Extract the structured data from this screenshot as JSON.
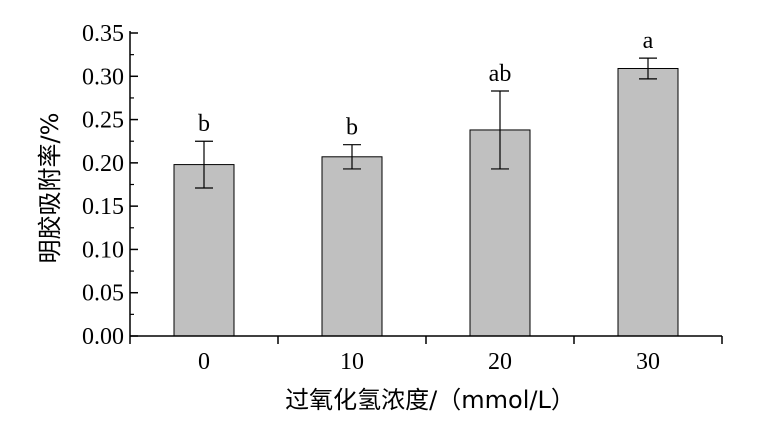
{
  "chart_data": {
    "type": "bar",
    "categories": [
      "0",
      "10",
      "20",
      "30"
    ],
    "values": [
      0.198,
      0.207,
      0.238,
      0.309
    ],
    "error": [
      0.027,
      0.014,
      0.045,
      0.012
    ],
    "significance_labels": [
      "b",
      "b",
      "ab",
      "a"
    ],
    "xlabel": "过氧化氢浓度/（mmol/L）",
    "ylabel": "明胶吸附率/%",
    "ylim": [
      0,
      0.35
    ],
    "yticks": [
      "0.00",
      "0.05",
      "0.10",
      "0.15",
      "0.20",
      "0.25",
      "0.30",
      "0.35"
    ],
    "bar_color": "#c0c0c0",
    "grid": false,
    "legend": "none"
  }
}
